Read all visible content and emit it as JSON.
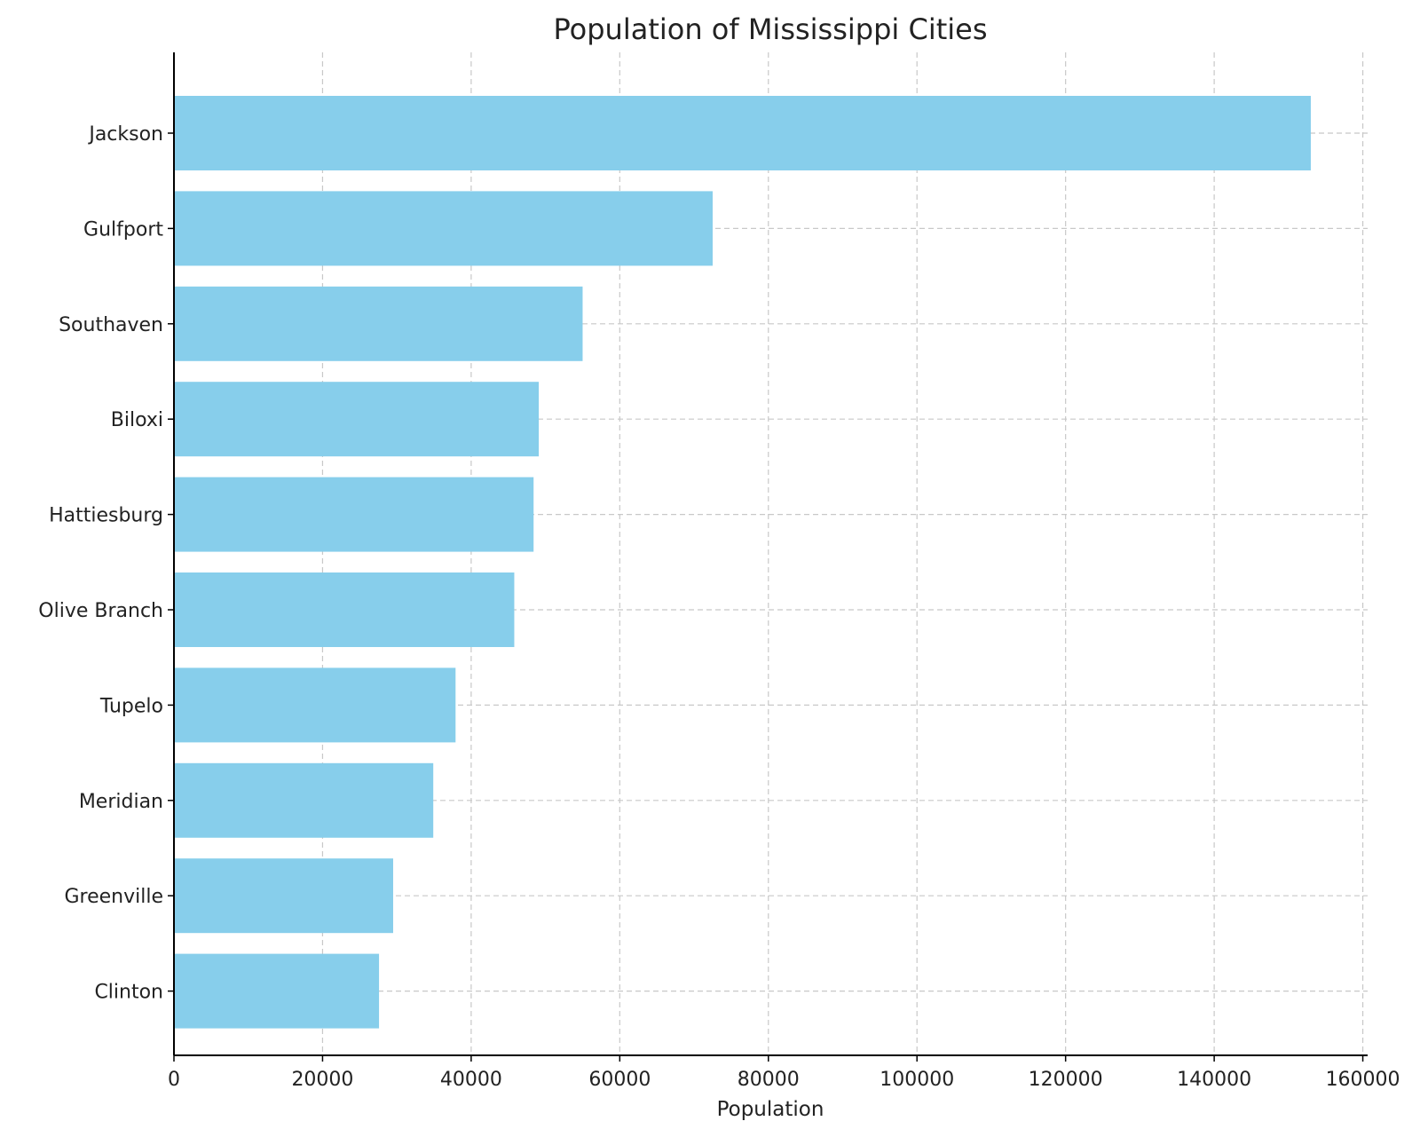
{
  "chart_data": {
    "type": "bar",
    "orientation": "horizontal",
    "title": "Population of Mississippi Cities",
    "xlabel": "Population",
    "ylabel": "",
    "categories": [
      "Jackson",
      "Gulfport",
      "Southaven",
      "Biloxi",
      "Hattiesburg",
      "Olive Branch",
      "Tupelo",
      "Meridian",
      "Greenville",
      "Clinton"
    ],
    "values": [
      153000,
      72500,
      55000,
      49100,
      48400,
      45800,
      37900,
      34900,
      29500,
      27600
    ],
    "xlim": [
      0,
      160650
    ],
    "xticks": [
      0,
      20000,
      40000,
      60000,
      80000,
      100000,
      120000,
      140000,
      160000
    ],
    "xtick_labels": [
      "0",
      "20000",
      "40000",
      "60000",
      "80000",
      "100000",
      "120000",
      "140000",
      "160000"
    ],
    "grid": true,
    "grid_style": "dashed",
    "bar_color": "#87CEEB"
  }
}
